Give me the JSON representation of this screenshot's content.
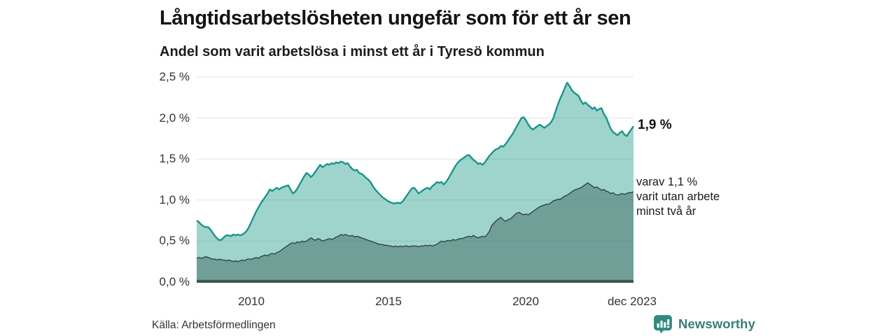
{
  "header": {
    "title": "Långtidsarbetslösheten ungefär som för ett år sen",
    "subtitle": "Andel som varit arbetslösa i minst ett år i Tyresö kommun"
  },
  "annotations": {
    "total_end_label": "1,9 %",
    "twoyear_line1": "varav 1,1 %",
    "twoyear_line2": "varit utan arbete",
    "twoyear_line3": "minst två år"
  },
  "footer": {
    "source": "Källa: Arbetsförmedlingen",
    "brand": "Newsworthy"
  },
  "colors": {
    "area_total_fill": "rgba(26,153,136,0.42)",
    "area_total_stroke": "#17968a",
    "area_twoyear_fill": "rgba(52,92,85,0.44)",
    "area_twoyear_stroke": "#2d4642",
    "baseline": "#3d5650",
    "gridline": "#e2e2e2",
    "brand_teal": "#377f78"
  },
  "chart_data": {
    "type": "area",
    "title": "Långtidsarbetslösheten ungefär som för ett år sen",
    "subtitle": "Andel som varit arbetslösa i minst ett år i Tyresö kommun",
    "unit": "%",
    "frequency": "monthly",
    "x_start": "2008-01",
    "x_end": "2023-12",
    "ylim": [
      0,
      2.5
    ],
    "grid": "horizontal",
    "y_ticks": [
      "2,5 %",
      "2,0 %",
      "1,5 %",
      "1,0 %",
      "0,5 %",
      "0,0 %"
    ],
    "x_ticks": [
      {
        "label": "2010",
        "month_index": 24
      },
      {
        "label": "2015",
        "month_index": 84
      },
      {
        "label": "2020",
        "month_index": 144
      },
      {
        "label": "dec 2023",
        "month_index": 191
      }
    ],
    "series": [
      {
        "name": "Andel som varit arbetslösa i minst ett år",
        "end_value": 1.9,
        "end_label": "1,9 %",
        "values": [
          0.75,
          0.73,
          0.7,
          0.68,
          0.67,
          0.67,
          0.64,
          0.6,
          0.56,
          0.53,
          0.51,
          0.52,
          0.55,
          0.57,
          0.57,
          0.56,
          0.58,
          0.57,
          0.58,
          0.57,
          0.58,
          0.6,
          0.63,
          0.68,
          0.74,
          0.8,
          0.86,
          0.91,
          0.96,
          1.0,
          1.04,
          1.08,
          1.13,
          1.11,
          1.13,
          1.15,
          1.13,
          1.15,
          1.16,
          1.17,
          1.18,
          1.13,
          1.08,
          1.1,
          1.14,
          1.19,
          1.24,
          1.29,
          1.33,
          1.31,
          1.28,
          1.31,
          1.35,
          1.39,
          1.43,
          1.4,
          1.42,
          1.44,
          1.43,
          1.45,
          1.44,
          1.46,
          1.45,
          1.47,
          1.46,
          1.44,
          1.45,
          1.41,
          1.38,
          1.36,
          1.37,
          1.33,
          1.32,
          1.3,
          1.27,
          1.25,
          1.22,
          1.17,
          1.13,
          1.1,
          1.07,
          1.04,
          1.02,
          1.0,
          0.98,
          0.97,
          0.96,
          0.96,
          0.97,
          0.96,
          0.98,
          1.02,
          1.06,
          1.1,
          1.14,
          1.15,
          1.12,
          1.08,
          1.1,
          1.12,
          1.14,
          1.15,
          1.13,
          1.17,
          1.19,
          1.22,
          1.21,
          1.22,
          1.19,
          1.22,
          1.26,
          1.31,
          1.36,
          1.41,
          1.45,
          1.48,
          1.5,
          1.52,
          1.54,
          1.55,
          1.52,
          1.49,
          1.47,
          1.44,
          1.45,
          1.43,
          1.46,
          1.5,
          1.54,
          1.57,
          1.6,
          1.62,
          1.63,
          1.66,
          1.65,
          1.68,
          1.72,
          1.76,
          1.8,
          1.85,
          1.9,
          1.95,
          2.0,
          2.01,
          1.97,
          1.92,
          1.88,
          1.86,
          1.88,
          1.9,
          1.92,
          1.9,
          1.88,
          1.9,
          1.92,
          1.95,
          2.0,
          2.09,
          2.17,
          2.24,
          2.3,
          2.37,
          2.43,
          2.39,
          2.34,
          2.31,
          2.29,
          2.27,
          2.21,
          2.17,
          2.19,
          2.16,
          2.14,
          2.11,
          2.13,
          2.09,
          2.11,
          2.12,
          2.05,
          2.01,
          1.94,
          1.87,
          1.83,
          1.81,
          1.79,
          1.82,
          1.84,
          1.8,
          1.78,
          1.82,
          1.86,
          1.9
        ]
      },
      {
        "name": "varav utan arbete minst två år",
        "end_value": 1.1,
        "end_label": "varav 1,1 % varit utan arbete minst två år",
        "values": [
          0.29,
          0.3,
          0.29,
          0.3,
          0.31,
          0.3,
          0.29,
          0.28,
          0.28,
          0.27,
          0.28,
          0.27,
          0.27,
          0.26,
          0.27,
          0.26,
          0.25,
          0.26,
          0.25,
          0.26,
          0.27,
          0.26,
          0.28,
          0.28,
          0.28,
          0.29,
          0.3,
          0.29,
          0.31,
          0.32,
          0.33,
          0.32,
          0.34,
          0.35,
          0.34,
          0.36,
          0.37,
          0.39,
          0.41,
          0.43,
          0.45,
          0.47,
          0.48,
          0.47,
          0.49,
          0.48,
          0.5,
          0.49,
          0.5,
          0.52,
          0.54,
          0.52,
          0.51,
          0.53,
          0.52,
          0.5,
          0.51,
          0.52,
          0.53,
          0.52,
          0.53,
          0.55,
          0.56,
          0.58,
          0.57,
          0.58,
          0.57,
          0.56,
          0.57,
          0.55,
          0.56,
          0.55,
          0.54,
          0.53,
          0.52,
          0.51,
          0.5,
          0.49,
          0.48,
          0.47,
          0.46,
          0.46,
          0.45,
          0.45,
          0.44,
          0.44,
          0.43,
          0.44,
          0.43,
          0.44,
          0.43,
          0.44,
          0.44,
          0.43,
          0.44,
          0.44,
          0.44,
          0.43,
          0.44,
          0.44,
          0.45,
          0.44,
          0.45,
          0.44,
          0.45,
          0.46,
          0.48,
          0.5,
          0.49,
          0.5,
          0.51,
          0.5,
          0.52,
          0.51,
          0.52,
          0.53,
          0.53,
          0.54,
          0.55,
          0.56,
          0.55,
          0.57,
          0.55,
          0.54,
          0.55,
          0.56,
          0.55,
          0.58,
          0.62,
          0.69,
          0.72,
          0.75,
          0.77,
          0.79,
          0.76,
          0.74,
          0.76,
          0.77,
          0.79,
          0.82,
          0.84,
          0.85,
          0.83,
          0.82,
          0.83,
          0.82,
          0.84,
          0.86,
          0.88,
          0.9,
          0.92,
          0.93,
          0.94,
          0.95,
          0.95,
          0.97,
          0.99,
          1.0,
          1.01,
          1.01,
          1.03,
          1.05,
          1.06,
          1.08,
          1.1,
          1.12,
          1.13,
          1.14,
          1.15,
          1.17,
          1.19,
          1.21,
          1.19,
          1.17,
          1.15,
          1.16,
          1.14,
          1.12,
          1.13,
          1.11,
          1.1,
          1.08,
          1.09,
          1.07,
          1.06,
          1.07,
          1.08,
          1.07,
          1.08,
          1.09,
          1.09,
          1.1
        ]
      }
    ]
  }
}
